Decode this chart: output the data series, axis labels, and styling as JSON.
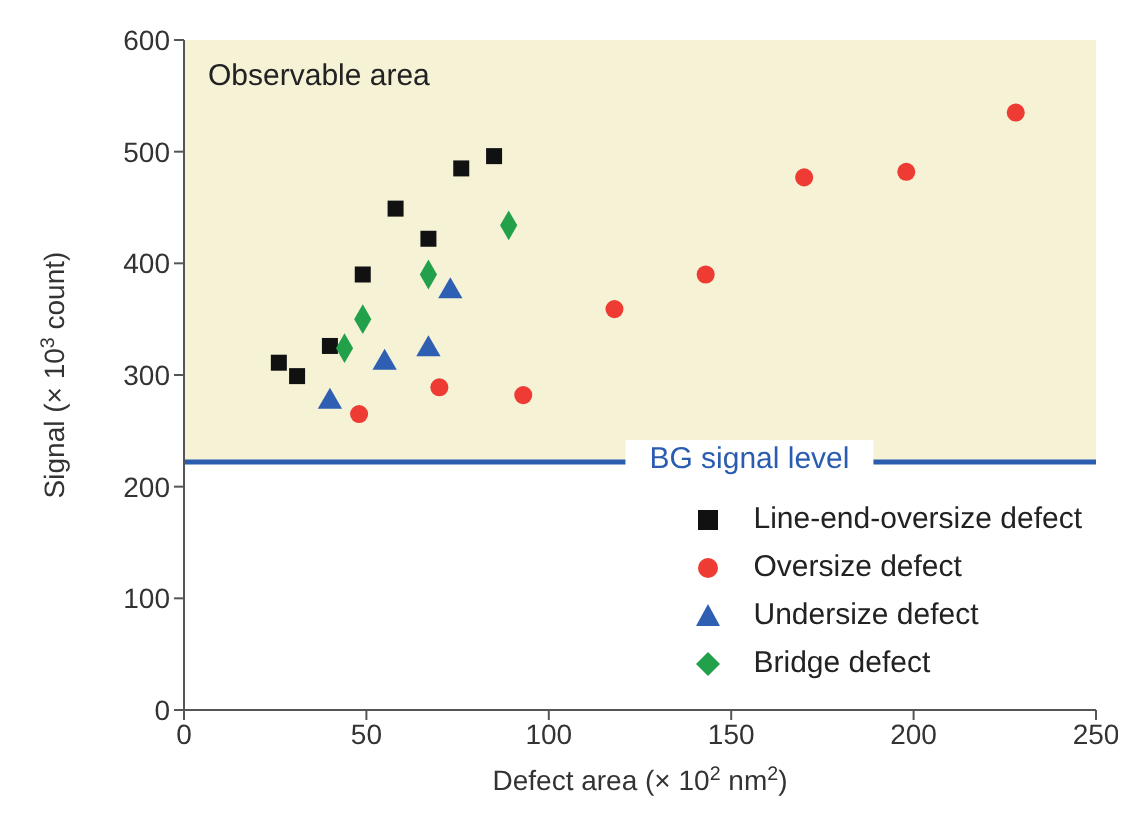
{
  "chart_data": {
    "type": "scatter",
    "xlabel": "Defect area (× 10$^{2}$ nm$^{2}$)",
    "ylabel": "Signal (× 10$^{3}$ count)",
    "xlim": [
      0,
      250
    ],
    "xticks": [
      0,
      50,
      100,
      150,
      200,
      250
    ],
    "ylim": [
      0,
      600
    ],
    "yticks": [
      0,
      100,
      200,
      300,
      400,
      500,
      600
    ],
    "grid": false,
    "legend": "bottom right",
    "series": [
      {
        "name": "Line-end-oversize defect",
        "color": "#111111",
        "marker": "square",
        "x": [
          26,
          31,
          40,
          49,
          58,
          67,
          76,
          85
        ],
        "values": [
          311,
          299,
          326,
          390,
          449,
          422,
          485,
          496
        ]
      },
      {
        "name": "Oversize defect",
        "color": "#ee3b33",
        "marker": "circle",
        "x": [
          48,
          70,
          93,
          118,
          143,
          170,
          198,
          228
        ],
        "values": [
          265,
          289,
          282,
          359,
          390,
          477,
          482,
          535
        ]
      },
      {
        "name": "Undersize defect",
        "color": "#2f5fb3",
        "marker": "triangle",
        "x": [
          40,
          55,
          67,
          73
        ],
        "values": [
          276,
          311,
          323,
          375
        ]
      },
      {
        "name": "Bridge defect",
        "color": "#22a04a",
        "marker": "diamond",
        "x": [
          44,
          49,
          67,
          89
        ],
        "values": [
          324,
          350,
          390,
          434
        ]
      }
    ],
    "ref_lines": [
      {
        "axis": "y",
        "value": 222,
        "label": "BG signal level",
        "color": "#2a5db0",
        "line_style": "solid"
      }
    ],
    "bands": [
      {
        "axis": "y",
        "from": 222,
        "to": 600,
        "label": "Observable area",
        "color": "#f6f2d6"
      }
    ]
  }
}
